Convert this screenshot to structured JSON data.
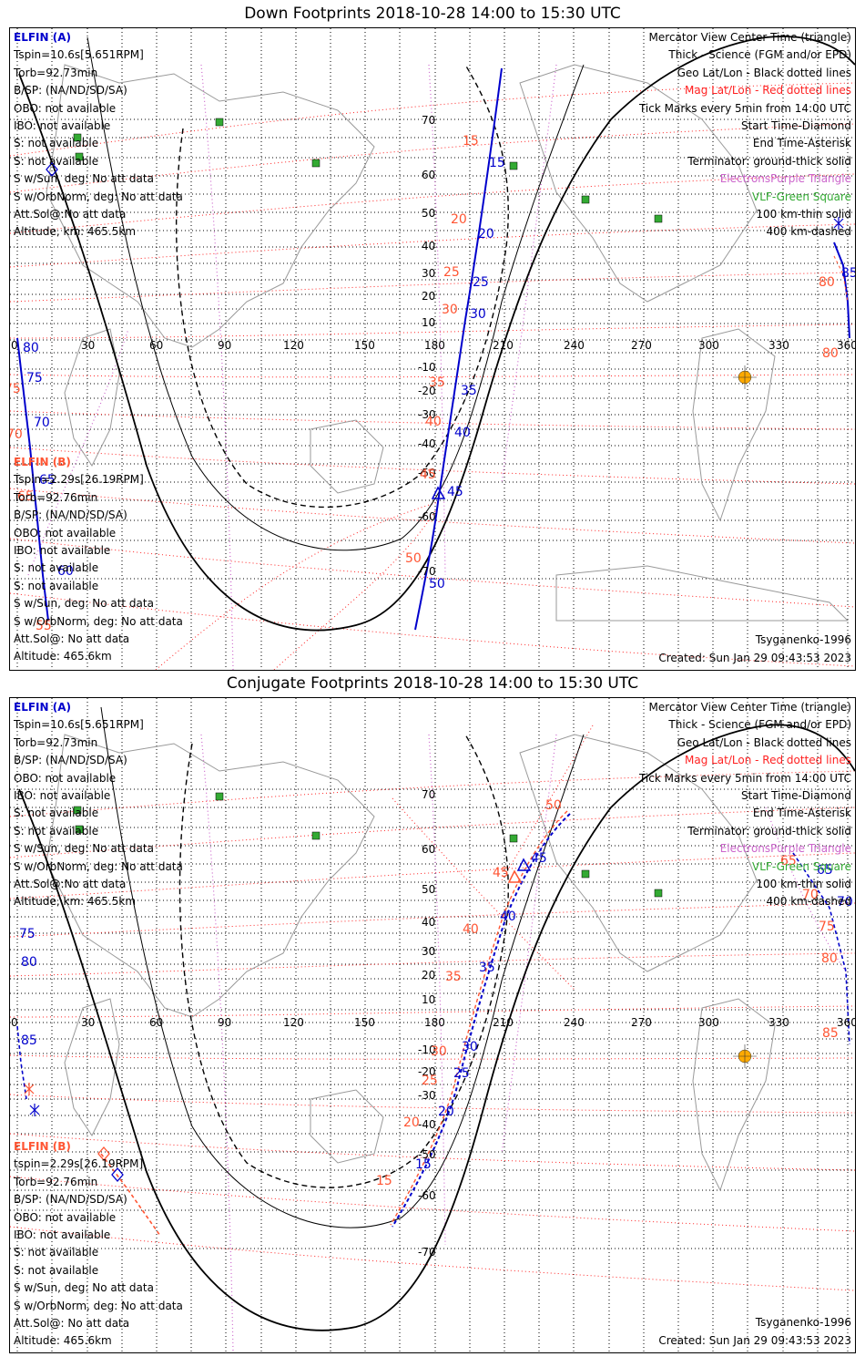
{
  "panels": [
    {
      "title": "Down Footprints 2018-10-28 14:00 to 15:30 UTC",
      "elfin_a": {
        "name": "ELFIN (A)",
        "tspin": "Tspin=10.6s[5.651RPM]",
        "torb": "Torb=92.73min",
        "bsp": "B/SP: (NA/ND/SD/SA)",
        "obo": "OBO: not available",
        "ibo": "IBO: not available",
        "s1": "S: not available",
        "s2": "S: not available",
        "swsun": "S w/Sun, deg: No att data",
        "sworb": "S w/OrbNorm, deg: No att data",
        "attsol": "Att.Sol@:No att data",
        "alt": "Altitude, km: 465.5km"
      },
      "elfin_b": {
        "name": "ELFIN (B)",
        "tspin": "Tspin=2.29s[26.19RPM]",
        "torb": "Torb=92.76min",
        "bsp": "B/SP: (NA/ND/SD/SA)",
        "obo": "OBO: not available",
        "ibo": "IBO: not available",
        "s1": "S: not available",
        "s2": "S: not available",
        "swsun": "S w/Sun, deg: No att data",
        "sworb": "S w/OrbNorm, deg: No att data",
        "attsol": "Att.Sol@: No att data",
        "alt": "Altitude: 465.6km"
      },
      "legend": {
        "l1": "Mercator View Center Time (triangle)",
        "l2": "Thick - Science (FGM and/or EPD)",
        "l3": "Geo Lat/Lon - Black dotted lines",
        "l4": "Mag Lat/Lon - Red dotted lines",
        "l5": "Tick Marks every 5min from 14:00 UTC",
        "l6": "Start Time-Diamond",
        "l7": "End Time-Asterisk",
        "l8": "Terminator: ground-thick solid",
        "l9": "ElectronsPurple Triangle",
        "l10": "VLF-Green Square",
        "l11": "100 km-thin solid",
        "l12": "400 km-dashed"
      },
      "model": "Tsyganenko-1996",
      "created": "Created: Sun Jan 29 09:43:53 2023",
      "track_labels_a": [
        "15",
        "20",
        "25",
        "30",
        "35",
        "40",
        "45",
        "50",
        "80",
        "75",
        "70",
        "65",
        "60",
        "55"
      ],
      "track_labels_b": [
        "15",
        "20",
        "25",
        "30",
        "35",
        "40",
        "45",
        "50",
        "85",
        "80",
        "75",
        "70",
        "65",
        "60",
        "55"
      ]
    },
    {
      "title": "Conjugate Footprints 2018-10-28 14:00 to 15:30 UTC",
      "elfin_a": {
        "name": "ELFIN (A)",
        "tspin": "Tspin=10.6s[5.651RPM]",
        "torb": "Torb=92.73min",
        "bsp": "B/SP: (NA/ND/SD/SA)",
        "obo": "OBO: not available",
        "ibo": "IBO: not available",
        "s1": "S: not available",
        "s2": "S: not available",
        "swsun": "S w/Sun, deg: No att data",
        "sworb": "S w/OrbNorm, deg: No att data",
        "attsol": "Att.Sol@:No att data",
        "alt": "Altitude, km: 465.5km"
      },
      "elfin_b": {
        "name": "ELFIN (B)",
        "tspin": "tspin=2.29s[26.19RPM]",
        "torb": "Torb=92.76min",
        "bsp": "B/SP: (NA/ND/SD/SA)",
        "obo": "OBO: not available",
        "ibo": "IBO: not available",
        "s1": "S: not available",
        "s2": "S: not available",
        "swsun": "S w/Sun, deg: No att data",
        "sworb": "S w/OrbNorm, deg: No att data",
        "attsol": "Att.Sol@: No att data",
        "alt": "Altitude: 465.6km"
      },
      "legend": {
        "l1": "Mercator View Center Time (triangle)",
        "l2": "Thick - Science (FGM and/or EPD)",
        "l3": "Geo Lat/Lon - Black dotted lines",
        "l4": "Mag Lat/Lon - Red dotted lines",
        "l5": "Tick Marks every 5min from 14:00 UTC",
        "l6": "Start Time-Diamond",
        "l7": "End Time-Asterisk",
        "l8": "Terminator: ground-thick solid",
        "l9": "ElectronsPurple Triangle",
        "l10": "VLF-Green Square",
        "l11": "100 km-thin solid",
        "l12": "400 km-dashed"
      },
      "model": "Tsyganenko-1996",
      "created": "Created: Sun Jan 29 09:43:53 2023",
      "track_labels_a": [
        "45",
        "40",
        "35",
        "30",
        "25",
        "20",
        "15",
        "75",
        "80",
        "85",
        "65",
        "70"
      ],
      "track_labels_b": [
        "50",
        "45",
        "40",
        "35",
        "30",
        "25",
        "20",
        "15",
        "65",
        "70",
        "75",
        "80",
        "85"
      ]
    }
  ],
  "lon_ticks": [
    "0",
    "30",
    "60",
    "90",
    "120",
    "150",
    "180",
    "210",
    "240",
    "270",
    "300",
    "330",
    "360"
  ],
  "lat_ticks_top": [
    "70",
    "60",
    "50",
    "40",
    "30",
    "20",
    "10",
    "-10",
    "-20",
    "-30",
    "-40",
    "-50",
    "-60",
    "-70"
  ],
  "lat_ticks_bottom": [
    "70",
    "60",
    "50",
    "40",
    "30",
    "20",
    "10",
    "-10",
    "-20",
    "-30",
    "-40",
    "-50",
    "-60",
    "-70"
  ],
  "colors": {
    "elfin_a": "#0000cc",
    "elfin_b": "#ff5533",
    "mag_grid": "#ff2222",
    "geo_grid": "#000000",
    "electrons": "#cc66cc",
    "vlf": "#33aa33",
    "sun": "#ffaa00"
  }
}
